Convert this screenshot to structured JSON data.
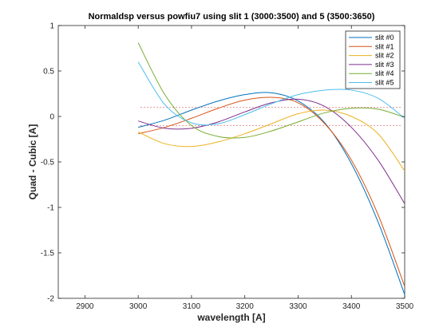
{
  "chart_data": {
    "type": "line",
    "title": "Normaldsp versus powfiu7 using slit 1 (3000:3500) and 5 (3500:3650)",
    "xlabel": "wavelength [A]",
    "ylabel": "Quad - Cubic  [A]",
    "xlim": [
      2850,
      3500
    ],
    "ylim": [
      -2,
      1
    ],
    "xticks": [
      2900,
      3000,
      3100,
      3200,
      3300,
      3400,
      3500
    ],
    "xtick_labels": [
      "2900",
      "3000",
      "3100",
      "3200",
      "3300",
      "3400",
      "3500"
    ],
    "yticks": [
      -2,
      -1.5,
      -1,
      -0.5,
      0,
      0.5,
      1
    ],
    "ytick_labels": [
      "-2",
      "-1.5",
      "-1",
      "-0.5",
      "0",
      "0.5",
      "1"
    ],
    "grid": false,
    "legend_position": "top-right",
    "series": [
      {
        "name": "slit #0",
        "color": "#0072BD",
        "x": [
          3000,
          3050,
          3100,
          3150,
          3200,
          3250,
          3300,
          3350,
          3400,
          3450,
          3500
        ],
        "y": [
          -0.12,
          -0.04,
          0.07,
          0.17,
          0.24,
          0.26,
          0.17,
          -0.07,
          -0.52,
          -1.16,
          -1.96
        ]
      },
      {
        "name": "slit #1",
        "color": "#D95319",
        "x": [
          3000,
          3050,
          3100,
          3150,
          3200,
          3250,
          3300,
          3350,
          3400,
          3450,
          3500
        ],
        "y": [
          -0.19,
          -0.12,
          -0.02,
          0.09,
          0.18,
          0.21,
          0.15,
          -0.08,
          -0.48,
          -1.08,
          -1.87
        ]
      },
      {
        "name": "slit #2",
        "color": "#EDB120",
        "x": [
          3000,
          3050,
          3100,
          3150,
          3200,
          3250,
          3300,
          3350,
          3400,
          3450,
          3500
        ],
        "y": [
          -0.17,
          -0.3,
          -0.33,
          -0.28,
          -0.19,
          -0.08,
          0.03,
          0.07,
          0.0,
          -0.19,
          -0.6
        ]
      },
      {
        "name": "slit #3",
        "color": "#7E2F8E",
        "x": [
          3000,
          3050,
          3100,
          3150,
          3200,
          3250,
          3300,
          3350,
          3400,
          3450,
          3500
        ],
        "y": [
          -0.05,
          -0.13,
          -0.13,
          -0.06,
          0.05,
          0.15,
          0.19,
          0.11,
          -0.12,
          -0.48,
          -0.96
        ]
      },
      {
        "name": "slit #4",
        "color": "#77AC30",
        "x": [
          3000,
          3050,
          3100,
          3150,
          3200,
          3250,
          3300,
          3350,
          3400,
          3450,
          3500
        ],
        "y": [
          0.81,
          0.24,
          -0.1,
          -0.22,
          -0.23,
          -0.16,
          -0.06,
          0.04,
          0.09,
          0.08,
          -0.01
        ]
      },
      {
        "name": "slit #5",
        "color": "#4DBEEE",
        "x": [
          3000,
          3050,
          3100,
          3150,
          3200,
          3250,
          3300,
          3350,
          3400,
          3450,
          3500
        ],
        "y": [
          0.6,
          0.13,
          -0.07,
          -0.08,
          0.02,
          0.14,
          0.24,
          0.29,
          0.29,
          0.2,
          -0.02
        ]
      }
    ],
    "reference_lines": [
      {
        "y": 0.1,
        "color": "#D42A2A",
        "style": "dotted",
        "x": [
          3005,
          3495
        ]
      },
      {
        "y": -0.1,
        "color": "#D42A2A",
        "style": "dotted",
        "x": [
          3005,
          3495
        ]
      }
    ]
  }
}
